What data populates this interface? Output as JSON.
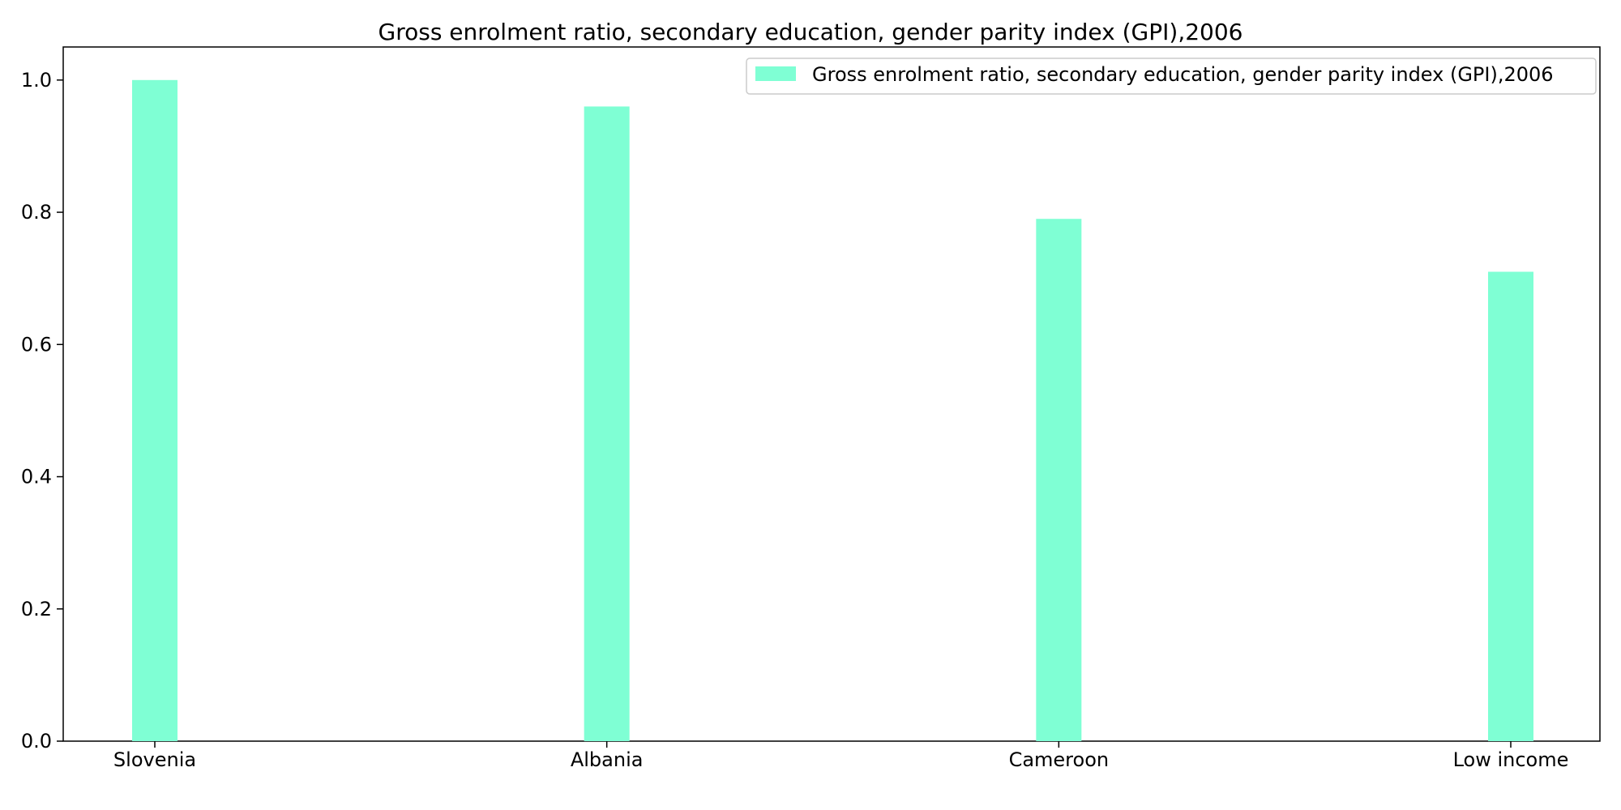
{
  "chart_data": {
    "type": "bar",
    "title": "Gross enrolment ratio, secondary education, gender parity index (GPI),2006",
    "xlabel": "",
    "ylabel": "",
    "categories": [
      "Slovenia",
      "Albania",
      "Cameroon",
      "Low income"
    ],
    "series": [
      {
        "name": "Gross enrolment ratio, secondary education, gender parity index (GPI),2006",
        "values": [
          1.0,
          0.96,
          0.79,
          0.71
        ],
        "color": "#7fffd4"
      }
    ],
    "ylim": [
      0,
      1.05
    ],
    "yticks": [
      "0.0",
      "0.2",
      "0.4",
      "0.6",
      "0.8",
      "1.0"
    ],
    "grid": false,
    "legend_position": "top-right"
  }
}
